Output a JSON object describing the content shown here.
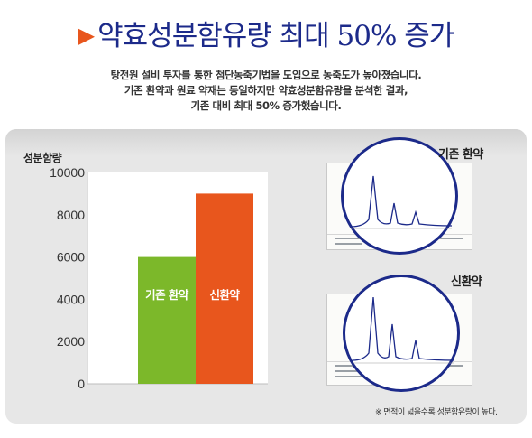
{
  "headline": {
    "text": "약효성분함유량 최대 50% 증가"
  },
  "intro": {
    "line1": "탕전원 설비 투자를 통한 첨단농축기법을 도입으로 농축도가 높아졌습니다.",
    "line2": "기존 환약과 원료 약재는 동일하지만 약효성분함유량을 분석한 결과,",
    "line3": "기존 대비 최대 50% 증가했습니다."
  },
  "colors": {
    "existing": "#7cb82a",
    "new": "#e8561d",
    "title": "#1c2a8a",
    "circle": "#1c2a8a"
  },
  "chart_data": {
    "type": "bar",
    "ylabel": "성분함량",
    "ylim": [
      0,
      10000
    ],
    "yticks": [
      "0",
      "2000",
      "4000",
      "6000",
      "8000",
      "10000"
    ],
    "categories": [
      "기존 환약",
      "신환약"
    ],
    "values": [
      6000,
      9000
    ],
    "grid": false
  },
  "chromatograms": {
    "existing_label": "기존 환약",
    "new_label": "신환약"
  },
  "footnote": "※ 면적이 넓을수록 성분함유량이 높다."
}
